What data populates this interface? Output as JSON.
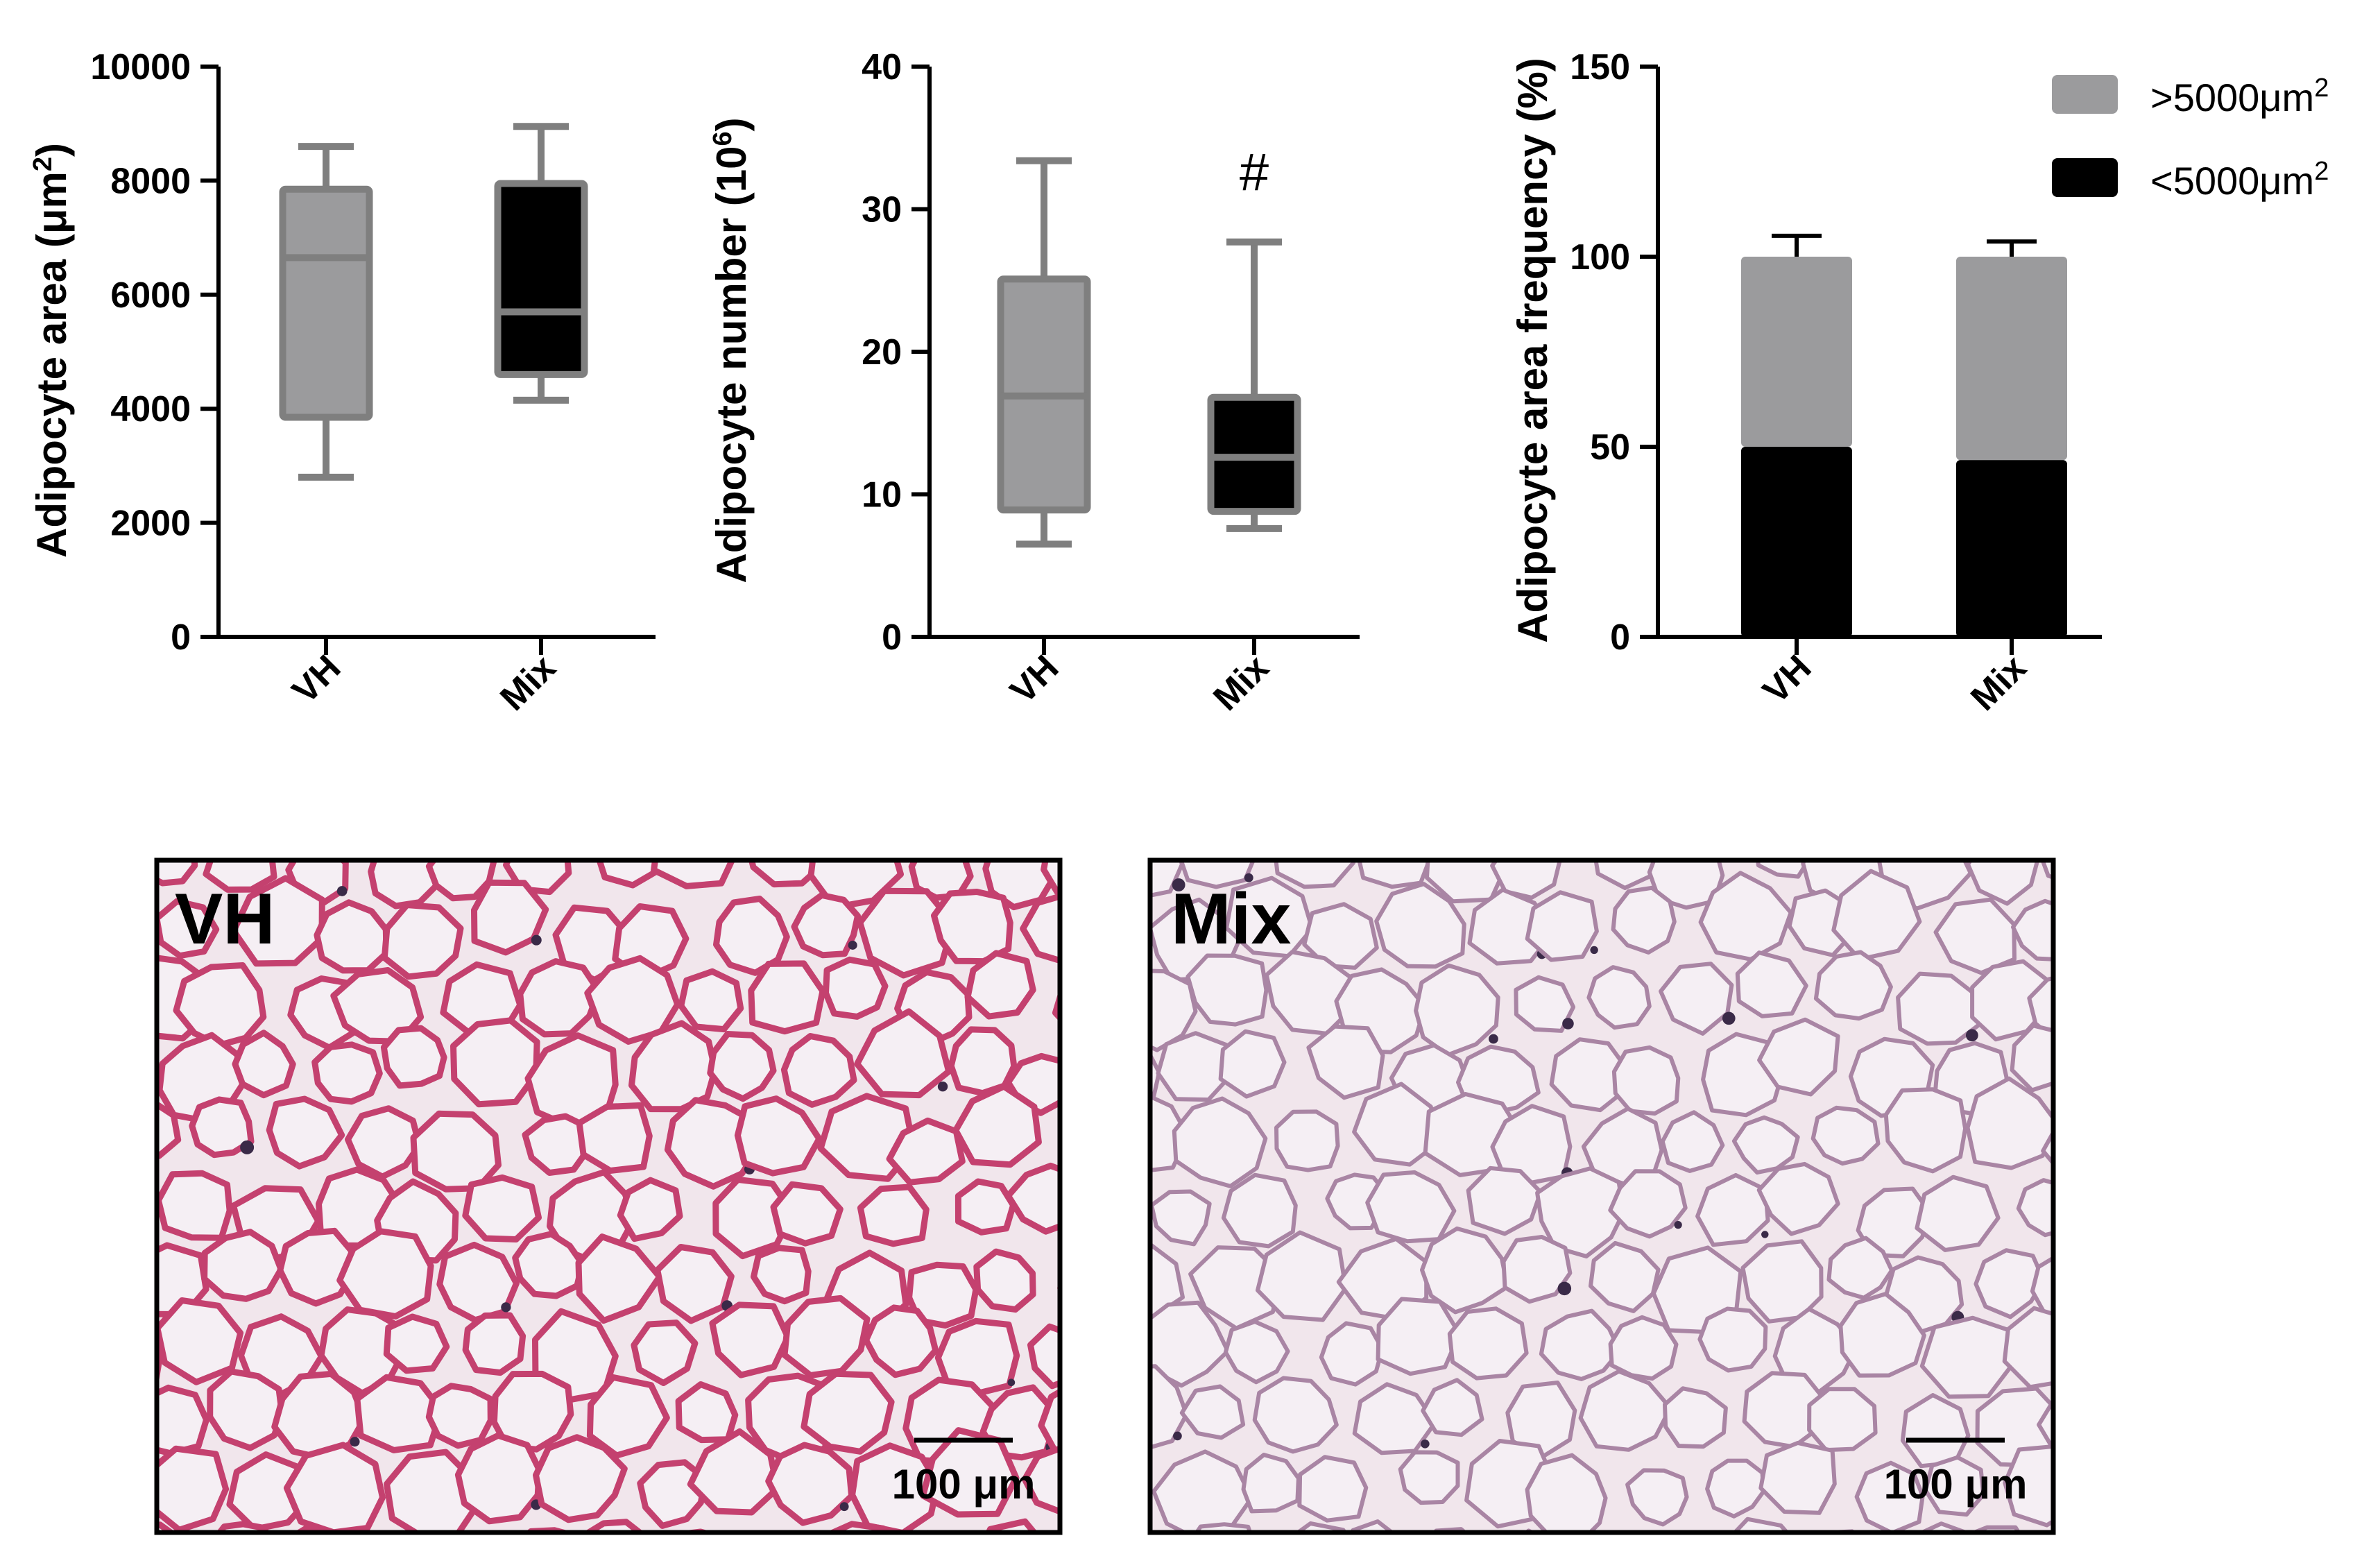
{
  "colors": {
    "gray": "#9b9b9d",
    "black": "#000000",
    "axis": "#000000",
    "whisker": "#7f7f7f",
    "tissue_bg": "#f1e6ec",
    "cell_fill": "#f5eff4",
    "septa_vh": "#c4416f",
    "septa_mix": "#a985a4"
  },
  "chart_data": [
    {
      "type": "box",
      "ylabel_main": "Adipocyte area (",
      "ylabel_unit": "μm",
      "ylabel_sup": "2",
      "ylabel_close": ")",
      "ylim": [
        0,
        10000
      ],
      "yticks": [
        0,
        2000,
        4000,
        6000,
        8000,
        10000
      ],
      "categories": [
        "VH",
        "Mix"
      ],
      "boxes": [
        {
          "category": "VH",
          "min": 2800,
          "q1": 3850,
          "median": 6650,
          "q3": 7850,
          "max": 8600,
          "color": "gray"
        },
        {
          "category": "Mix",
          "min": 4150,
          "q1": 4600,
          "median": 5700,
          "q3": 7950,
          "max": 8950,
          "color": "black"
        }
      ]
    },
    {
      "type": "box",
      "ylabel_main": "Adipocyte number (10",
      "ylabel_sup": "6",
      "ylabel_close": ")",
      "ylim": [
        0,
        40
      ],
      "yticks": [
        0,
        10,
        20,
        30,
        40
      ],
      "categories": [
        "VH",
        "Mix"
      ],
      "boxes": [
        {
          "category": "VH",
          "min": 6.5,
          "q1": 8.9,
          "median": 16.9,
          "q3": 25.1,
          "max": 33.4,
          "color": "gray"
        },
        {
          "category": "Mix",
          "min": 7.6,
          "q1": 8.8,
          "median": 12.6,
          "q3": 16.8,
          "max": 27.7,
          "color": "black"
        }
      ],
      "annotations": [
        {
          "category": "Mix",
          "text": "#"
        }
      ]
    },
    {
      "type": "bar",
      "stacked": true,
      "ylabel": "Adipocyte area frequency (%)",
      "ylim": [
        0,
        150
      ],
      "yticks": [
        0,
        50,
        100,
        150
      ],
      "categories": [
        "VH",
        "Mix"
      ],
      "series": [
        {
          "name": "<5000",
          "values": [
            50,
            46.5
          ],
          "color": "black"
        },
        {
          "name": ">5000",
          "values": [
            50,
            53.5
          ],
          "color": "gray"
        }
      ],
      "error_top": [
        105.5,
        104
      ],
      "legend": {
        "position": "top-right",
        "items": [
          {
            "prefix": ">5000",
            "unit": "μm",
            "sup": "2",
            "color": "gray"
          },
          {
            "prefix": "<5000",
            "unit": "μm",
            "sup": "2",
            "color": "black"
          }
        ]
      }
    }
  ],
  "micrographs": [
    {
      "label": "VH",
      "scale_text": "100 μm",
      "seed": 11,
      "septa": "septa_vh",
      "thick": 9
    },
    {
      "label": "Mix",
      "scale_text": "100 μm",
      "seed": 37,
      "septa": "septa_mix",
      "thick": 6
    }
  ]
}
